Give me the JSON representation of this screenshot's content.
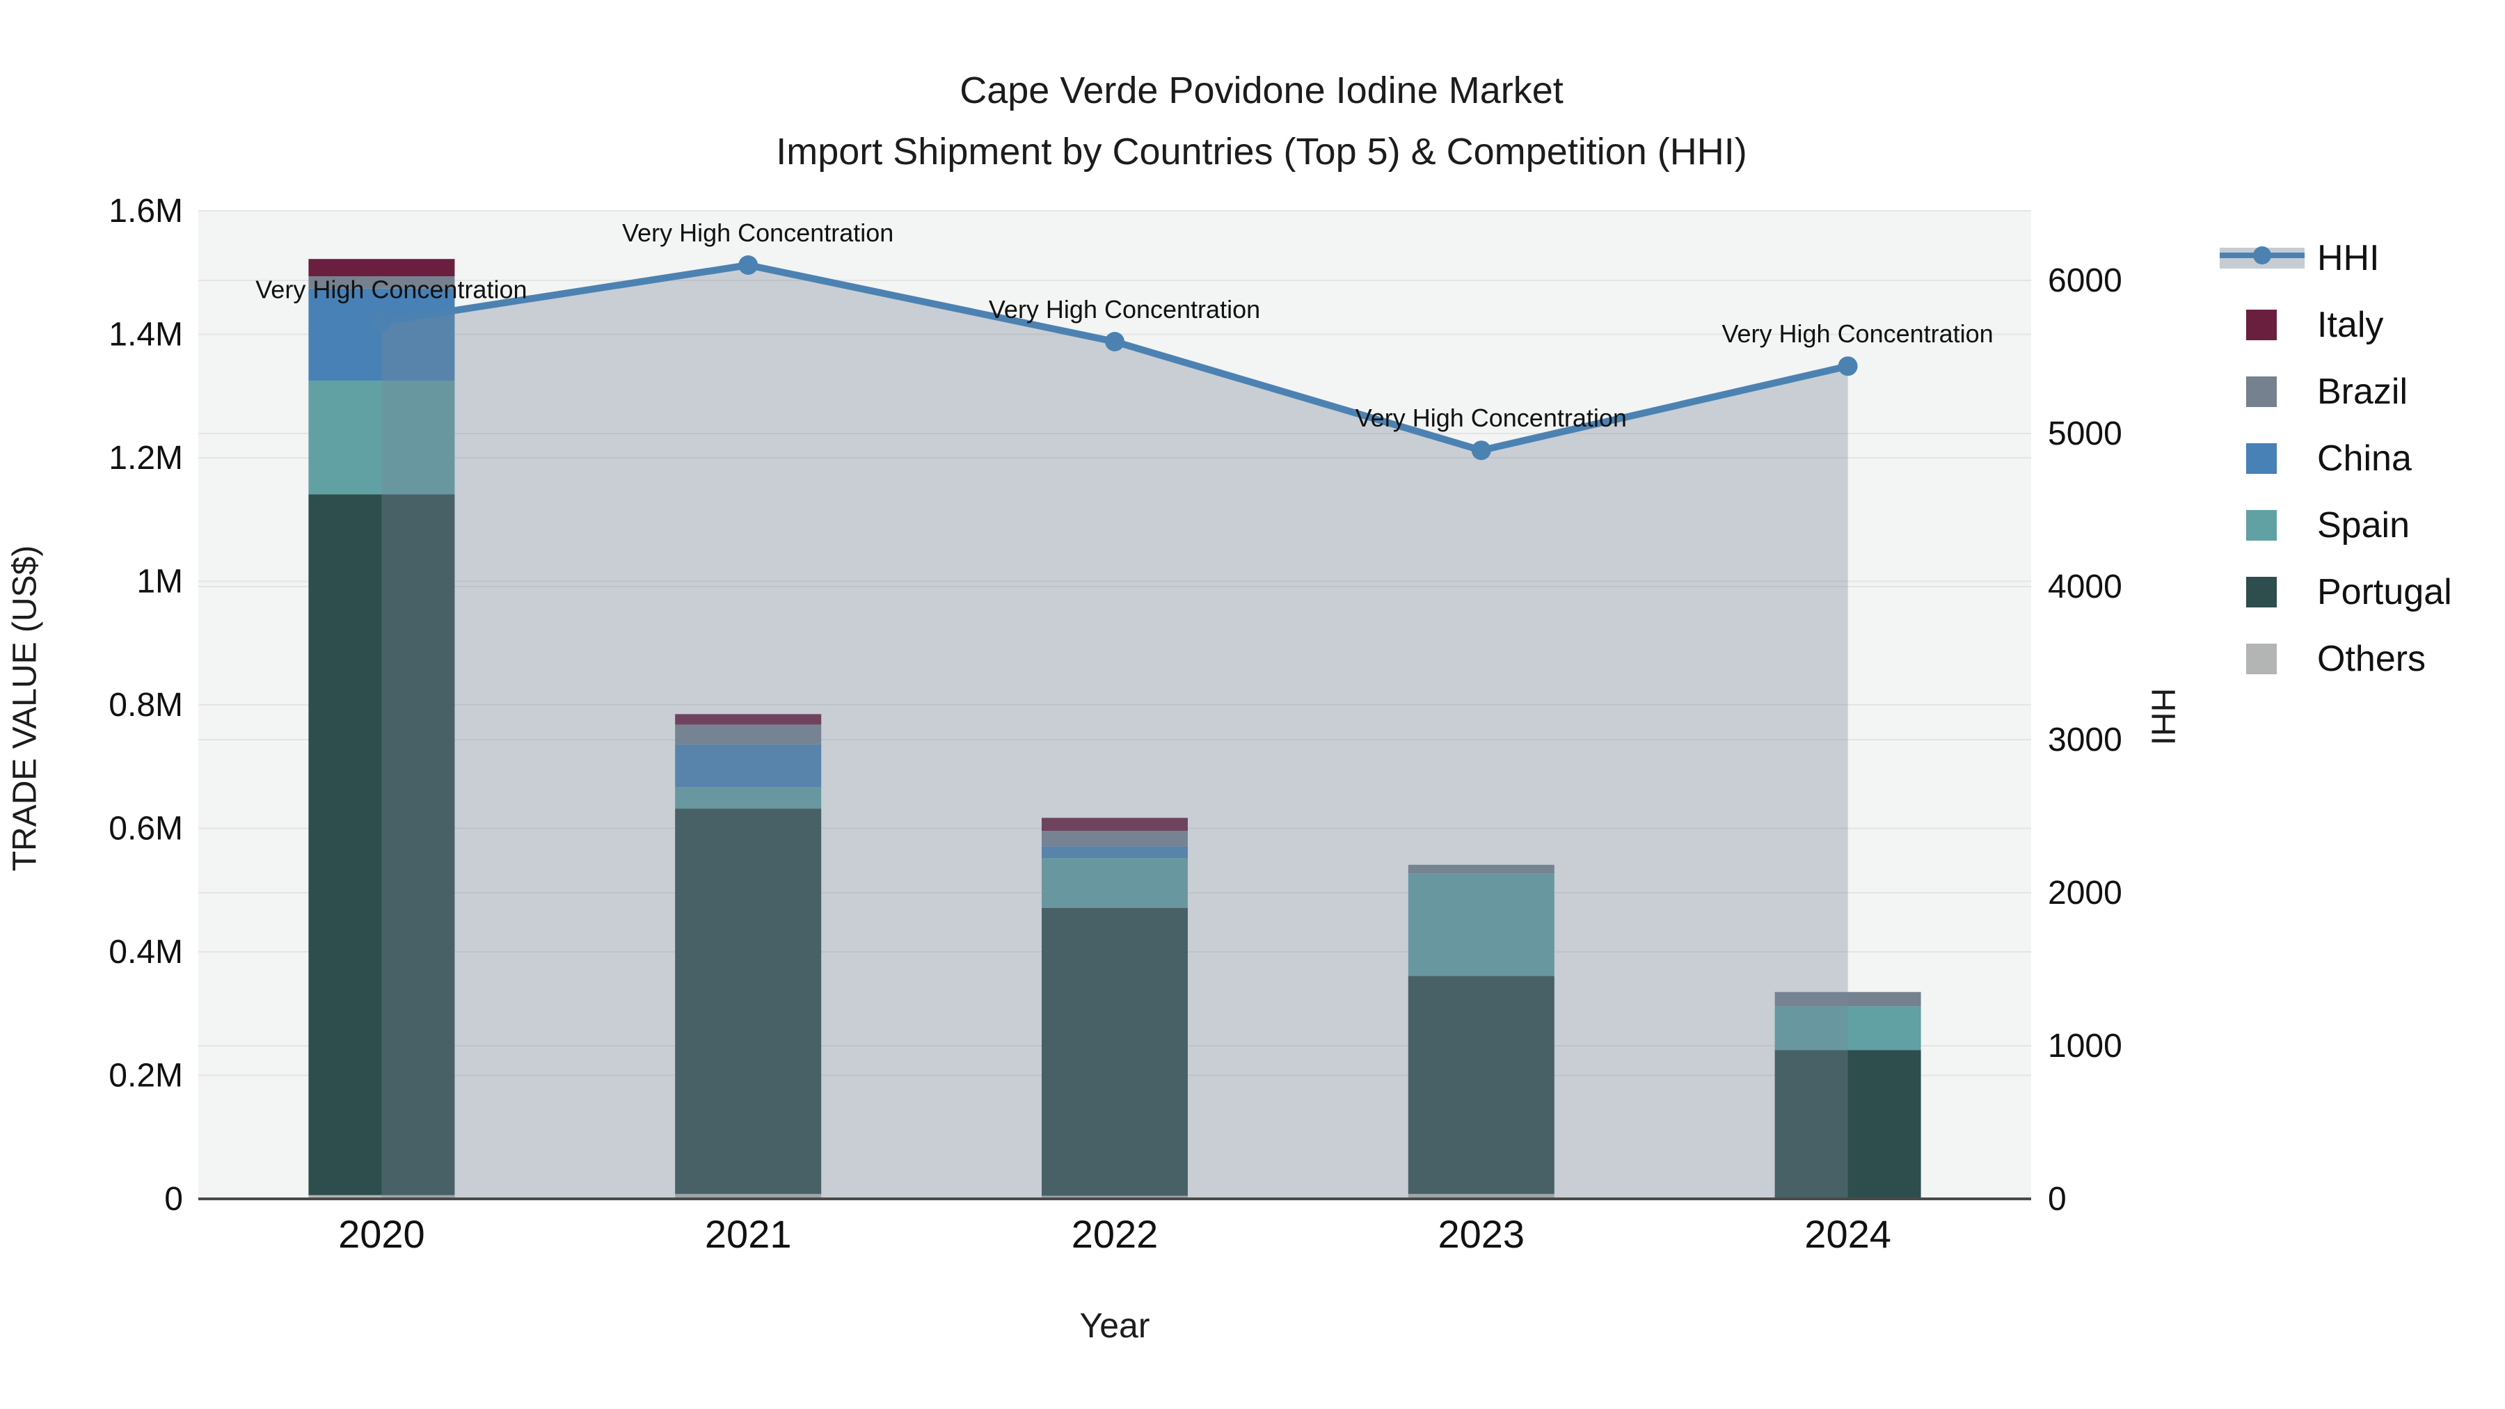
{
  "title": {
    "line1": "Cape Verde Povidone Iodine Market",
    "line2": "Import Shipment by Countries (Top 5) & Competition (HHI)"
  },
  "axes": {
    "x_title": "Year",
    "y_left_title": "TRADE VALUE (US$)",
    "y_right_title": "HHI"
  },
  "chart_data": {
    "type": [
      "bar-stacked",
      "line"
    ],
    "title": "Cape Verde Povidone Iodine Market — Import Shipment by Countries (Top 5) & Competition (HHI)",
    "categories": [
      "2020",
      "2021",
      "2022",
      "2023",
      "2024"
    ],
    "xlabel": "Year",
    "ylabel_left": "TRADE VALUE (US$)",
    "ylabel_right": "HHI",
    "y_left_axis": {
      "min": 0,
      "max": 1600000,
      "tick_values": [
        0,
        200000,
        400000,
        600000,
        800000,
        1000000,
        1200000,
        1400000,
        1600000
      ],
      "tick_labels": [
        "0",
        "0.2M",
        "0.4M",
        "0.6M",
        "0.8M",
        "1M",
        "1.2M",
        "1.4M",
        "1.6M"
      ]
    },
    "y_right_axis": {
      "min": 0,
      "max": 6454,
      "tick_values": [
        0,
        1000,
        2000,
        3000,
        4000,
        5000,
        6000
      ],
      "tick_labels": [
        "0",
        "1000",
        "2000",
        "3000",
        "4000",
        "5000",
        "6000"
      ]
    },
    "series": [
      {
        "name": "Others",
        "color": "#b2b5b3",
        "values": [
          6000,
          8000,
          5000,
          8000,
          0
        ]
      },
      {
        "name": "Portugal",
        "color": "#2e4d4d",
        "values": [
          1135000,
          624000,
          466000,
          353000,
          241000
        ]
      },
      {
        "name": "Spain",
        "color": "#61a0a3",
        "values": [
          184000,
          35000,
          81000,
          166000,
          71000
        ]
      },
      {
        "name": "China",
        "color": "#4781b6",
        "values": [
          149000,
          69000,
          19000,
          0,
          0
        ]
      },
      {
        "name": "Brazil",
        "color": "#75818f",
        "values": [
          20000,
          32000,
          25000,
          14000,
          23000
        ]
      },
      {
        "name": "Italy",
        "color": "#6a1f3f",
        "values": [
          28000,
          17000,
          21000,
          0,
          0
        ]
      }
    ],
    "totals": [
      1522000,
      785000,
      617000,
      541000,
      335000
    ],
    "hhi": {
      "name": "HHI",
      "line_color": "#4c82b2",
      "area_fill": "rgba(119,136,153,0.35)",
      "values": [
        5730,
        6100,
        5600,
        4890,
        5440
      ]
    },
    "annotation_text": "Very High Concentration",
    "annotations": [
      {
        "x": "2020",
        "label": "Very High Concentration"
      },
      {
        "x": "2021",
        "label": "Very High Concentration"
      },
      {
        "x": "2022",
        "label": "Very High Concentration"
      },
      {
        "x": "2023",
        "label": "Very High Concentration"
      },
      {
        "x": "2024",
        "label": "Very High Concentration"
      }
    ],
    "legend": {
      "position": "right",
      "entries": [
        "HHI",
        "Italy",
        "Brazil",
        "China",
        "Spain",
        "Portugal",
        "Others"
      ]
    },
    "grid": true,
    "colors": {
      "plot_background": "#f3f4f4",
      "grid_line": "#e4e4e4",
      "axis_line": "#4a4a4a",
      "text": "#111111"
    }
  }
}
